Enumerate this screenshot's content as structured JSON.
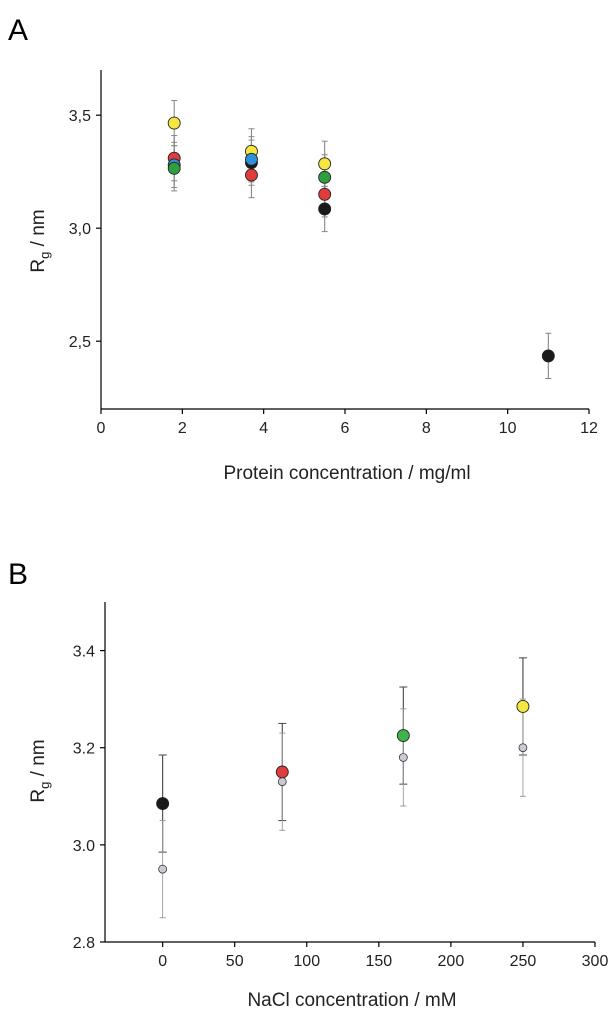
{
  "chart_data": [
    {
      "type": "scatter",
      "panel_label": "A",
      "xlabel": "Protein concentration  /  mg/ml",
      "ylabel_main": "R",
      "ylabel_sub": "g",
      "ylabel_unit": "  /  nm",
      "xlim": [
        0,
        12
      ],
      "ylim": [
        2.2,
        3.7
      ],
      "xticks": [
        0,
        2,
        4,
        6,
        8,
        10,
        12
      ],
      "xtick_labels": [
        "0",
        "2",
        "4",
        "6",
        "8",
        "10",
        "12"
      ],
      "yticks": [
        2.5,
        3.0,
        3.5
      ],
      "ytick_labels": [
        "2,5",
        "3,0",
        "3,5"
      ],
      "grid": false,
      "colors": {
        "black": "#1a1a1a",
        "red": "#e03c3c",
        "green": "#2e9e3e",
        "yellow": "#f5e642",
        "blue": "#2f8fd8",
        "error_bar": "#888888"
      },
      "points": [
        {
          "x": 1.8,
          "y": 3.465,
          "err": 0.1,
          "color": "yellow"
        },
        {
          "x": 1.8,
          "y": 3.31,
          "err": 0.1,
          "color": "red"
        },
        {
          "x": 1.8,
          "y": 3.28,
          "err": 0.1,
          "color": "blue"
        },
        {
          "x": 1.8,
          "y": 3.265,
          "err": 0.1,
          "color": "green"
        },
        {
          "x": 3.7,
          "y": 3.34,
          "err": 0.1,
          "color": "yellow"
        },
        {
          "x": 3.7,
          "y": 3.29,
          "err": 0.1,
          "color": "black"
        },
        {
          "x": 3.7,
          "y": 3.305,
          "err": 0.1,
          "color": "blue"
        },
        {
          "x": 3.7,
          "y": 3.235,
          "err": 0.1,
          "color": "red"
        },
        {
          "x": 5.5,
          "y": 3.285,
          "err": 0.1,
          "color": "yellow"
        },
        {
          "x": 5.5,
          "y": 3.225,
          "err": 0.1,
          "color": "green"
        },
        {
          "x": 5.5,
          "y": 3.15,
          "err": 0.1,
          "color": "red"
        },
        {
          "x": 5.5,
          "y": 3.085,
          "err": 0.1,
          "color": "black"
        },
        {
          "x": 11.0,
          "y": 2.435,
          "err": 0.1,
          "color": "black"
        }
      ]
    },
    {
      "type": "scatter",
      "panel_label": "B",
      "xlabel": "NaCl concentration  /  mM",
      "ylabel_main": "R",
      "ylabel_sub": "g",
      "ylabel_unit": "  /  nm",
      "xlim": [
        -40,
        300
      ],
      "ylim": [
        2.8,
        3.5
      ],
      "xticks": [
        0,
        50,
        100,
        150,
        200,
        250,
        300
      ],
      "xtick_labels": [
        "0",
        "50",
        "100",
        "150",
        "200",
        "250",
        "300"
      ],
      "yticks": [
        2.8,
        3.0,
        3.2,
        3.4
      ],
      "ytick_labels": [
        "2.8",
        "3.0",
        "3.2",
        "3.4"
      ],
      "grid": false,
      "colors": {
        "black": "#1a1a1a",
        "red": "#e03c3c",
        "green": "#3db34a",
        "yellow": "#f5e642",
        "gray": "#c8ccd2",
        "error_bar": "#444444",
        "gray_error_bar": "#9a9a9a"
      },
      "points": [
        {
          "x": 0,
          "y": 3.085,
          "err": 0.1,
          "color": "black",
          "size": "large"
        },
        {
          "x": 0,
          "y": 2.95,
          "err": 0.1,
          "color": "gray",
          "size": "small"
        },
        {
          "x": 83,
          "y": 3.15,
          "err": 0.1,
          "color": "red",
          "size": "large"
        },
        {
          "x": 83,
          "y": 3.13,
          "err": 0.1,
          "color": "gray",
          "size": "small"
        },
        {
          "x": 167,
          "y": 3.225,
          "err": 0.1,
          "color": "green",
          "size": "large"
        },
        {
          "x": 167,
          "y": 3.18,
          "err": 0.1,
          "color": "gray",
          "size": "small"
        },
        {
          "x": 250,
          "y": 3.285,
          "err": 0.1,
          "color": "yellow",
          "size": "large"
        },
        {
          "x": 250,
          "y": 3.2,
          "err": 0.1,
          "color": "gray",
          "size": "small"
        }
      ]
    }
  ]
}
